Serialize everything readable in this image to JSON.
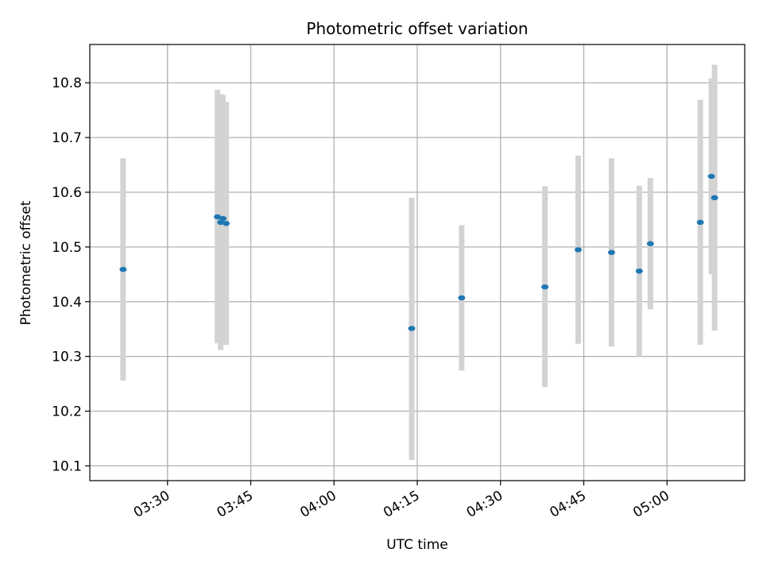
{
  "chart_data": {
    "type": "scatter",
    "title": "Photometric offset variation",
    "xlabel": "UTC time",
    "ylabel": "Photometric offset",
    "x_unit": "UTC time (HH:MM)",
    "xlim": [
      "03:16",
      "05:14"
    ],
    "ylim": [
      10.073,
      10.87
    ],
    "x_ticks": [
      "03:30",
      "03:45",
      "04:00",
      "04:15",
      "04:30",
      "04:45",
      "05:00"
    ],
    "y_ticks": [
      10.1,
      10.2,
      10.3,
      10.4,
      10.5,
      10.6,
      10.7,
      10.8
    ],
    "y_tick_labels": [
      "10.1",
      "10.2",
      "10.3",
      "10.4",
      "10.5",
      "10.6",
      "10.7",
      "10.8"
    ],
    "grid": true,
    "colors": {
      "point": "#1f77b4",
      "errorbar": "#d3d3d3",
      "grid": "#b0b0b0"
    },
    "points": [
      {
        "x": "03:22",
        "y": 10.459,
        "ylow": 10.256,
        "yhigh": 10.662
      },
      {
        "x": "03:39",
        "y": 10.555,
        "ylow": 10.324,
        "yhigh": 10.787
      },
      {
        "x": "03:39",
        "y": 10.545,
        "ylow": 10.312,
        "yhigh": 10.779
      },
      {
        "x": "03:40",
        "y": 10.552,
        "ylow": 10.326,
        "yhigh": 10.778
      },
      {
        "x": "03:40",
        "y": 10.543,
        "ylow": 10.321,
        "yhigh": 10.765
      },
      {
        "x": "04:14",
        "y": 10.351,
        "ylow": 10.111,
        "yhigh": 10.59
      },
      {
        "x": "04:23",
        "y": 10.407,
        "ylow": 10.274,
        "yhigh": 10.54
      },
      {
        "x": "04:38",
        "y": 10.427,
        "ylow": 10.244,
        "yhigh": 10.611
      },
      {
        "x": "04:44",
        "y": 10.495,
        "ylow": 10.323,
        "yhigh": 10.667
      },
      {
        "x": "04:50",
        "y": 10.49,
        "ylow": 10.318,
        "yhigh": 10.662
      },
      {
        "x": "04:55",
        "y": 10.456,
        "ylow": 10.3,
        "yhigh": 10.612
      },
      {
        "x": "04:57",
        "y": 10.506,
        "ylow": 10.386,
        "yhigh": 10.626
      },
      {
        "x": "05:06",
        "y": 10.545,
        "ylow": 10.321,
        "yhigh": 10.769
      },
      {
        "x": "05:08",
        "y": 10.629,
        "ylow": 10.45,
        "yhigh": 10.808
      },
      {
        "x": "05:08",
        "y": 10.59,
        "ylow": 10.347,
        "yhigh": 10.833
      }
    ]
  }
}
